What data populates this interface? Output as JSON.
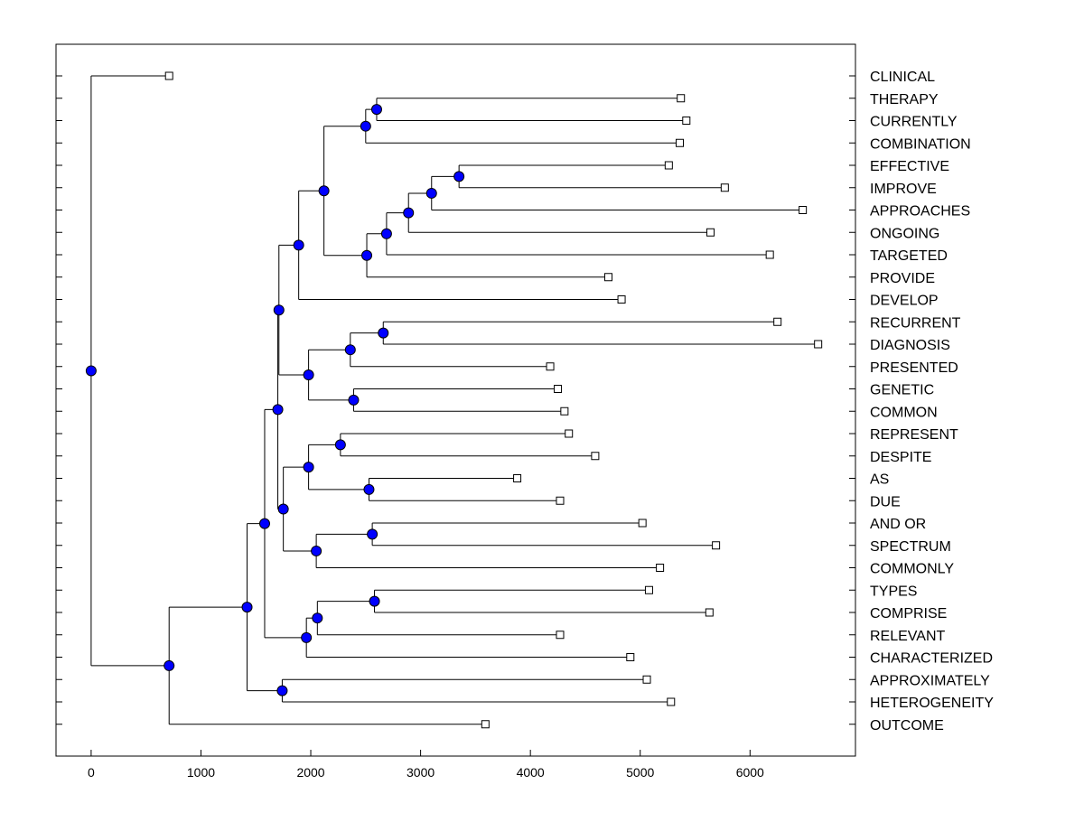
{
  "chart_data": {
    "type": "dendrogram",
    "title": "",
    "xlabel": "",
    "ylabel": "",
    "xlim": [
      -320,
      6960
    ],
    "xticks": [
      0,
      1000,
      2000,
      3000,
      4000,
      5000,
      6000
    ],
    "colors": {
      "node_fill": "#0000ff",
      "line": "#000000",
      "leaf_fill": "#ffffff"
    },
    "leaves": [
      {
        "id": 0,
        "label": "CLINICAL",
        "x": 710
      },
      {
        "id": 1,
        "label": "THERAPY",
        "x": 5370
      },
      {
        "id": 2,
        "label": "CURRENTLY",
        "x": 5420
      },
      {
        "id": 3,
        "label": "COMBINATION",
        "x": 5360
      },
      {
        "id": 4,
        "label": "EFFECTIVE",
        "x": 5260
      },
      {
        "id": 5,
        "label": "IMPROVE",
        "x": 5770
      },
      {
        "id": 6,
        "label": "APPROACHES",
        "x": 6480
      },
      {
        "id": 7,
        "label": "ONGOING",
        "x": 5640
      },
      {
        "id": 8,
        "label": "TARGETED",
        "x": 6180
      },
      {
        "id": 9,
        "label": "PROVIDE",
        "x": 4710
      },
      {
        "id": 10,
        "label": "DEVELOP",
        "x": 4830
      },
      {
        "id": 11,
        "label": "RECURRENT",
        "x": 6250
      },
      {
        "id": 12,
        "label": "DIAGNOSIS",
        "x": 6620
      },
      {
        "id": 13,
        "label": "PRESENTED",
        "x": 4180
      },
      {
        "id": 14,
        "label": "GENETIC",
        "x": 4250
      },
      {
        "id": 15,
        "label": "COMMON",
        "x": 4310
      },
      {
        "id": 16,
        "label": "REPRESENT",
        "x": 4350
      },
      {
        "id": 17,
        "label": "DESPITE",
        "x": 4590
      },
      {
        "id": 18,
        "label": "AS",
        "x": 3880
      },
      {
        "id": 19,
        "label": "DUE",
        "x": 4270
      },
      {
        "id": 20,
        "label": "AND OR",
        "x": 5020
      },
      {
        "id": 21,
        "label": "SPECTRUM",
        "x": 5690
      },
      {
        "id": 22,
        "label": "COMMONLY",
        "x": 5180
      },
      {
        "id": 23,
        "label": "TYPES",
        "x": 5080
      },
      {
        "id": 24,
        "label": "COMPRISE",
        "x": 5630
      },
      {
        "id": 25,
        "label": "RELEVANT",
        "x": 4270
      },
      {
        "id": 26,
        "label": "CHARACTERIZED",
        "x": 4910
      },
      {
        "id": 27,
        "label": "APPROXIMATELY",
        "x": 5060
      },
      {
        "id": 28,
        "label": "HETEROGENEITY",
        "x": 5280
      },
      {
        "id": 29,
        "label": "OUTCOME",
        "x": 3590
      }
    ],
    "nodes": [
      {
        "id": "n1",
        "x": 2600,
        "children": [
          1,
          2
        ]
      },
      {
        "id": "n2",
        "x": 2500,
        "children": [
          "n1",
          3
        ]
      },
      {
        "id": "n3",
        "x": 3350,
        "children": [
          4,
          5
        ]
      },
      {
        "id": "n4",
        "x": 3100,
        "children": [
          "n3",
          6
        ]
      },
      {
        "id": "n5",
        "x": 2890,
        "children": [
          "n4",
          7
        ]
      },
      {
        "id": "n6",
        "x": 2690,
        "children": [
          "n5",
          8
        ]
      },
      {
        "id": "n7",
        "x": 2510,
        "children": [
          "n6",
          9
        ]
      },
      {
        "id": "n8",
        "x": 2120,
        "children": [
          "n2",
          "n7"
        ]
      },
      {
        "id": "n9",
        "x": 1890,
        "children": [
          "n8",
          10
        ]
      },
      {
        "id": "n10",
        "x": 2660,
        "children": [
          11,
          12
        ]
      },
      {
        "id": "n11",
        "x": 2360,
        "children": [
          "n10",
          13
        ]
      },
      {
        "id": "n12",
        "x": 2390,
        "children": [
          14,
          15
        ]
      },
      {
        "id": "n13",
        "x": 1980,
        "children": [
          "n11",
          "n12"
        ]
      },
      {
        "id": "n14",
        "x": 1710,
        "children": [
          "n9",
          "n13"
        ]
      },
      {
        "id": "n15",
        "x": 2270,
        "children": [
          16,
          17
        ]
      },
      {
        "id": "n16",
        "x": 2530,
        "children": [
          18,
          19
        ]
      },
      {
        "id": "n17",
        "x": 1980,
        "children": [
          "n15",
          "n16"
        ]
      },
      {
        "id": "n18",
        "x": 2560,
        "children": [
          20,
          21
        ]
      },
      {
        "id": "n19",
        "x": 2050,
        "children": [
          "n18",
          22
        ]
      },
      {
        "id": "n20",
        "x": 1750,
        "children": [
          "n17",
          "n19"
        ]
      },
      {
        "id": "n21",
        "x": 1700,
        "children": [
          "n14",
          "n20"
        ]
      },
      {
        "id": "n22",
        "x": 2580,
        "children": [
          23,
          24
        ]
      },
      {
        "id": "n23",
        "x": 2060,
        "children": [
          "n22",
          25
        ]
      },
      {
        "id": "n24",
        "x": 1960,
        "children": [
          "n23",
          26
        ]
      },
      {
        "id": "n25",
        "x": 1580,
        "children": [
          "n21",
          "n24"
        ]
      },
      {
        "id": "n26",
        "x": 1740,
        "children": [
          27,
          28
        ]
      },
      {
        "id": "n27",
        "x": 1420,
        "children": [
          "n25",
          "n26"
        ]
      },
      {
        "id": "n28",
        "x": 710,
        "children": [
          "n27",
          29
        ]
      },
      {
        "id": "root",
        "x": 0,
        "children": [
          0,
          "n28"
        ]
      }
    ]
  }
}
